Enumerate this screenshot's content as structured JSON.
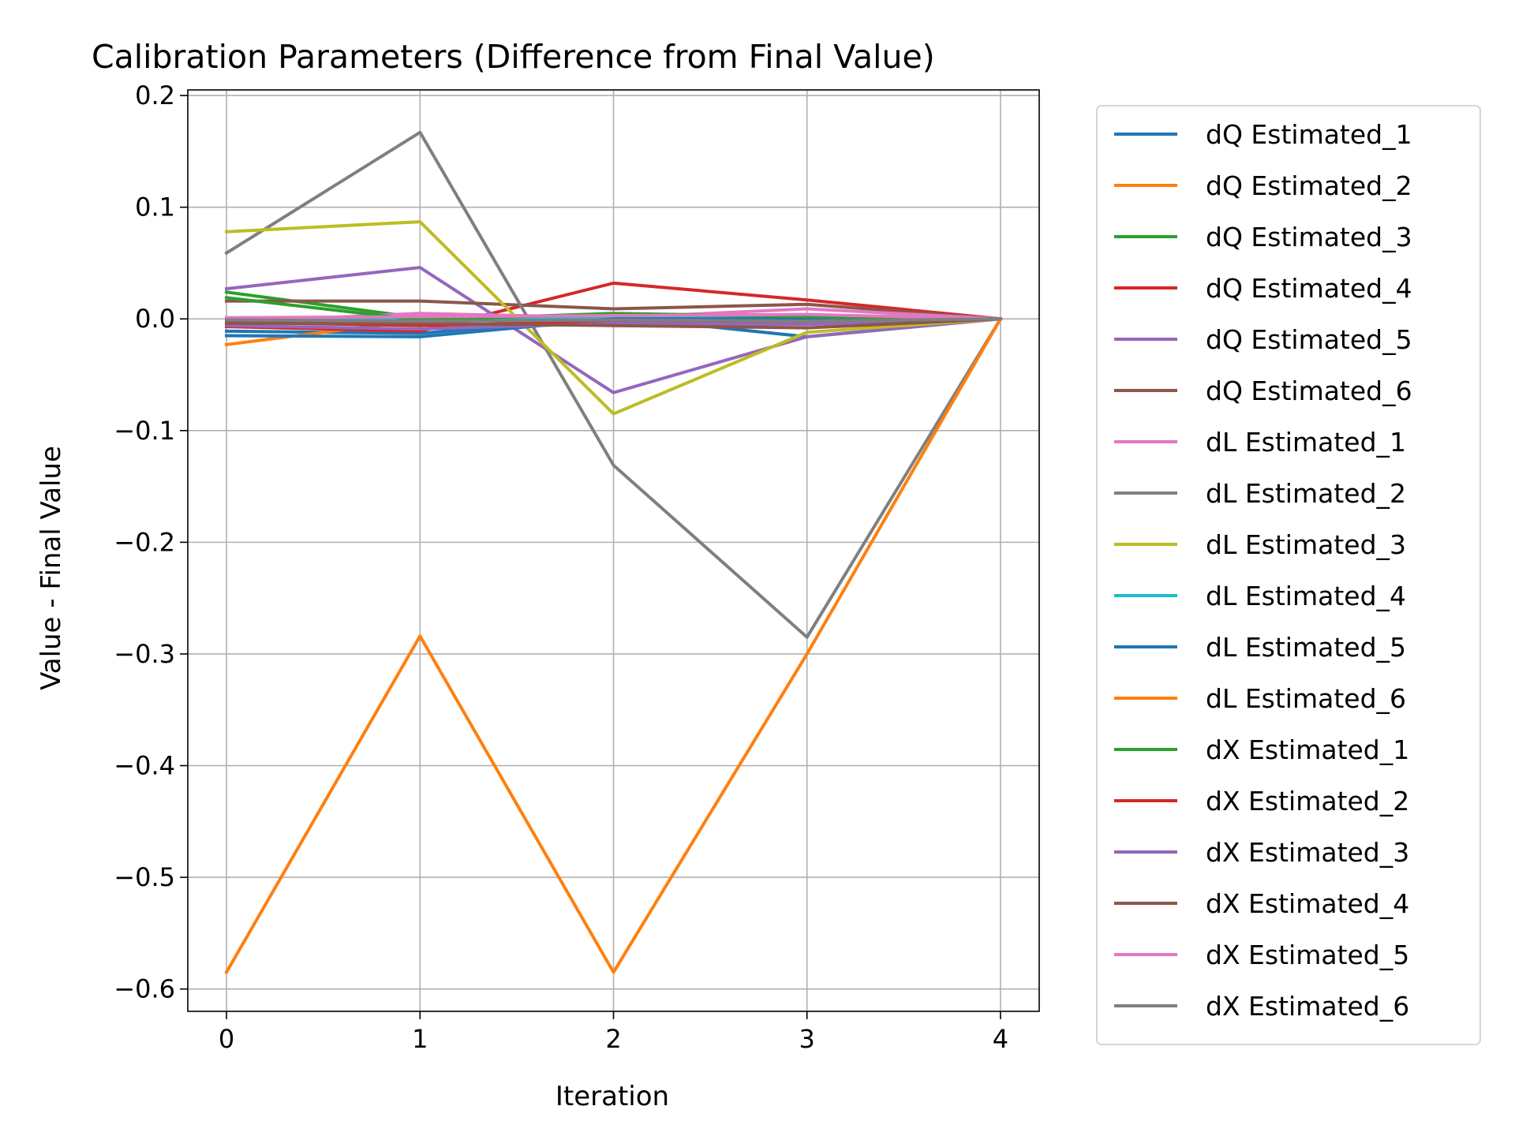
{
  "chart_data": {
    "type": "line",
    "title": "Calibration Parameters (Difference from Final Value)",
    "xlabel": "Iteration",
    "ylabel": "Value - Final Value",
    "x": [
      0,
      1,
      2,
      3,
      4
    ],
    "xticks": [
      "0",
      "1",
      "2",
      "3",
      "4"
    ],
    "xlim": [
      -0.2,
      4.2
    ],
    "ylim": [
      -0.62,
      0.205
    ],
    "yticks": [
      0.2,
      0.1,
      0.0,
      -0.1,
      -0.2,
      -0.3,
      -0.4,
      -0.5,
      -0.6
    ],
    "ytick_labels": [
      "0.2",
      "0.1",
      "0.0",
      "−0.1",
      "−0.2",
      "−0.3",
      "−0.4",
      "−0.5",
      "−0.6"
    ],
    "grid": true,
    "legend_position": "outside-right",
    "series": [
      {
        "name": "dQ Estimated_1",
        "color": "#1f77b4",
        "values": [
          -0.011,
          -0.013,
          0.002,
          -0.016,
          0.0
        ]
      },
      {
        "name": "dQ Estimated_2",
        "color": "#ff7f0e",
        "values": [
          -0.023,
          -0.001,
          -0.002,
          -0.003,
          0.0
        ]
      },
      {
        "name": "dQ Estimated_3",
        "color": "#2ca02c",
        "values": [
          0.024,
          0.001,
          0.003,
          0.002,
          0.0
        ]
      },
      {
        "name": "dQ Estimated_4",
        "color": "#d62728",
        "values": [
          -0.007,
          -0.011,
          0.032,
          0.017,
          0.0
        ]
      },
      {
        "name": "dQ Estimated_5",
        "color": "#9467bd",
        "values": [
          0.027,
          0.046,
          -0.066,
          -0.016,
          0.0
        ]
      },
      {
        "name": "dQ Estimated_6",
        "color": "#8c564b",
        "values": [
          0.016,
          0.016,
          0.009,
          0.013,
          0.0
        ]
      },
      {
        "name": "dL Estimated_1",
        "color": "#e377c2",
        "values": [
          -0.003,
          0.005,
          0.001,
          0.009,
          0.0
        ]
      },
      {
        "name": "dL Estimated_2",
        "color": "#7f7f7f",
        "values": [
          0.059,
          0.167,
          -0.131,
          -0.285,
          0.0
        ]
      },
      {
        "name": "dL Estimated_3",
        "color": "#bcbd22",
        "values": [
          0.078,
          0.087,
          -0.085,
          -0.012,
          0.0
        ]
      },
      {
        "name": "dL Estimated_4",
        "color": "#17becf",
        "values": [
          0.0,
          0.0,
          0.001,
          0.001,
          0.0
        ]
      },
      {
        "name": "dL Estimated_5",
        "color": "#1f77b4",
        "values": [
          -0.015,
          -0.016,
          0.0,
          0.0,
          0.0
        ]
      },
      {
        "name": "dL Estimated_6",
        "color": "#ff7f0e",
        "values": [
          -0.585,
          -0.284,
          -0.585,
          -0.3,
          0.0
        ]
      },
      {
        "name": "dX Estimated_1",
        "color": "#2ca02c",
        "values": [
          0.019,
          -0.001,
          0.005,
          0.002,
          0.0
        ]
      },
      {
        "name": "dX Estimated_2",
        "color": "#d62728",
        "values": [
          -0.003,
          -0.006,
          -0.002,
          -0.004,
          0.0
        ]
      },
      {
        "name": "dX Estimated_3",
        "color": "#9467bd",
        "values": [
          -0.006,
          -0.009,
          -0.004,
          -0.005,
          0.0
        ]
      },
      {
        "name": "dX Estimated_4",
        "color": "#8c564b",
        "values": [
          -0.004,
          -0.004,
          -0.006,
          -0.008,
          0.0
        ]
      },
      {
        "name": "dX Estimated_5",
        "color": "#e377c2",
        "values": [
          0.001,
          0.002,
          0.003,
          0.004,
          0.0
        ]
      },
      {
        "name": "dX Estimated_6",
        "color": "#7f7f7f",
        "values": [
          -0.001,
          -0.002,
          -0.001,
          -0.002,
          0.0
        ]
      }
    ]
  }
}
